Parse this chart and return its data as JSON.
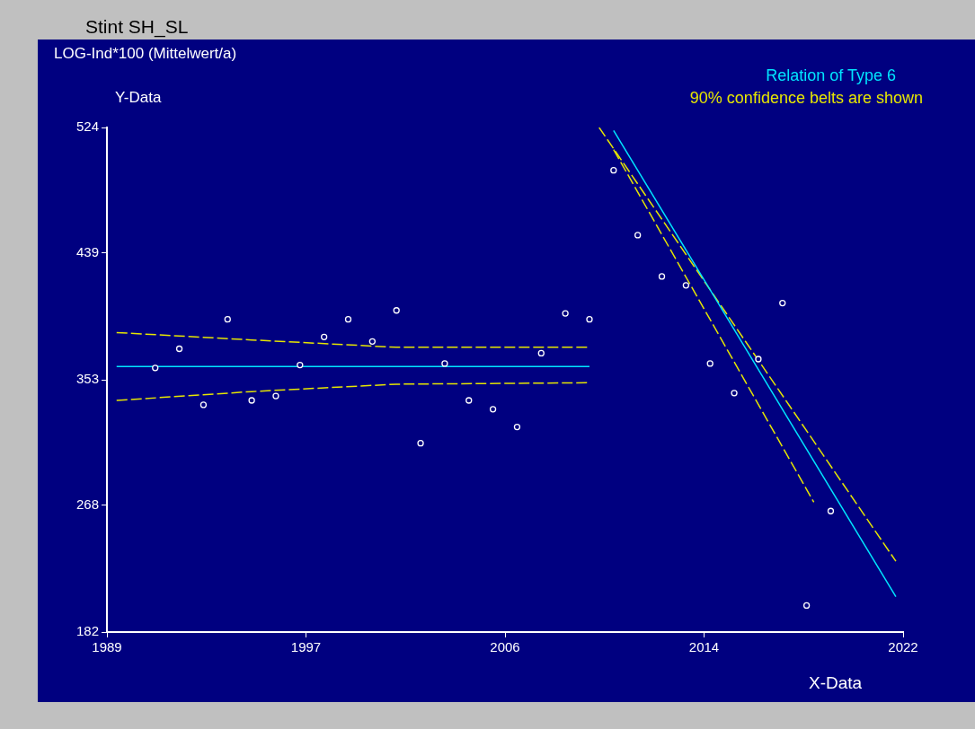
{
  "chart_data": {
    "type": "scatter",
    "title": "Stint SH_SL",
    "subtitle": "LOG-Ind*100 (Mittelwert/a)",
    "xlabel": "X-Data",
    "ylabel": "Y-Data",
    "annotations": [
      "Relation of Type 6",
      "90% confidence belts are shown"
    ],
    "xlim": [
      1989,
      2022
    ],
    "xticks": [
      1989,
      {
        "value": 1997.25,
        "label": "1997"
      },
      {
        "value": 2005.5,
        "label": "2006"
      },
      {
        "value": 2013.75,
        "label": "2014"
      },
      2022
    ],
    "ylim": [
      182,
      524
    ],
    "yticks": [
      182,
      268,
      353,
      439,
      524
    ],
    "grid": false,
    "legend": false,
    "series": [
      {
        "color": "#ffffff",
        "marker": "circle",
        "x": [
          1991,
          1992,
          1993,
          1994,
          1995,
          1996,
          1997,
          1998,
          1999,
          2000,
          2001,
          2002,
          2003,
          2004,
          2005,
          2006,
          2007,
          2008,
          2009,
          2010,
          2011,
          2012,
          2013,
          2014,
          2015,
          2016,
          2017,
          2018,
          2019
        ],
        "values": [
          361,
          374,
          336,
          394,
          339,
          342,
          363,
          382,
          394,
          379,
          400,
          310,
          364,
          339,
          333,
          321,
          371,
          398,
          394,
          495,
          451,
          423,
          417,
          364,
          344,
          367,
          405,
          200,
          264
        ]
      },
      {
        "type": "line",
        "color": "#00e5ff",
        "marker": "none",
        "line_style": "solid",
        "x": [
          1989.4,
          2009
        ],
        "values": [
          362,
          362
        ]
      },
      {
        "type": "line",
        "color": "#00e5ff",
        "marker": "none",
        "line_style": "solid",
        "x": [
          2010,
          2021.7
        ],
        "values": [
          522,
          206
        ]
      },
      {
        "type": "line",
        "color": "#e6e600",
        "marker": "none",
        "line_style": "dashed",
        "x": [
          1989.4,
          1995,
          2001,
          2009
        ],
        "values": [
          385,
          380,
          375,
          375
        ]
      },
      {
        "type": "line",
        "color": "#e6e600",
        "marker": "none",
        "line_style": "dashed",
        "x": [
          1989.4,
          1995,
          2001,
          2009
        ],
        "values": [
          339,
          345,
          350,
          351
        ]
      },
      {
        "type": "line",
        "color": "#e6e600",
        "marker": "none",
        "line_style": "dashed",
        "x": [
          2009.4,
          2021.7
        ],
        "values": [
          524,
          230
        ]
      },
      {
        "type": "line",
        "color": "#e6e600",
        "marker": "none",
        "line_style": "dashed",
        "x": [
          2010,
          2018.3
        ],
        "values": [
          509,
          270
        ]
      }
    ]
  }
}
